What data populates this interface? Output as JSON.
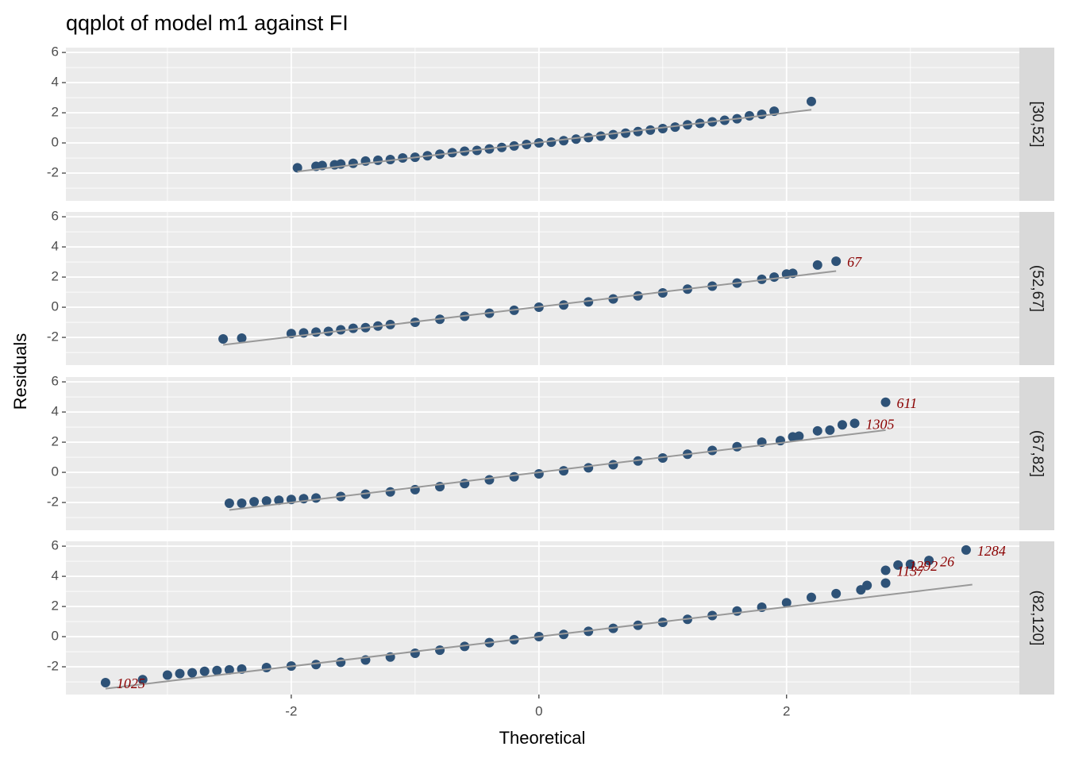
{
  "chart_data": {
    "type": "scatter",
    "title": "qqplot of model m1 against FI",
    "xlabel": "Theoretical",
    "ylabel": "Residuals",
    "xlim": [
      -3.82,
      3.88
    ],
    "ylim": [
      -3.84,
      6.32
    ],
    "xticks": [
      -2,
      0,
      2
    ],
    "yticks": [
      -2,
      0,
      2,
      4,
      6
    ],
    "grid": true,
    "point_color": "#2e5277",
    "line_color": "#999999",
    "label_color": "#8b0000",
    "panels": [
      {
        "strip": "[30,52]",
        "x": [
          -1.95,
          -1.8,
          -1.75,
          -1.65,
          -1.6,
          -1.5,
          -1.4,
          -1.3,
          -1.2,
          -1.1,
          -1.0,
          -0.9,
          -0.8,
          -0.7,
          -0.6,
          -0.5,
          -0.4,
          -0.3,
          -0.2,
          -0.1,
          0,
          0.1,
          0.2,
          0.3,
          0.4,
          0.5,
          0.6,
          0.7,
          0.8,
          0.9,
          1.0,
          1.1,
          1.2,
          1.3,
          1.4,
          1.5,
          1.6,
          1.7,
          1.8,
          1.9,
          2.2
        ],
        "y": [
          -1.65,
          -1.55,
          -1.5,
          -1.45,
          -1.4,
          -1.35,
          -1.2,
          -1.15,
          -1.1,
          -1.0,
          -0.95,
          -0.85,
          -0.75,
          -0.65,
          -0.55,
          -0.5,
          -0.4,
          -0.3,
          -0.2,
          -0.1,
          0,
          0.05,
          0.15,
          0.25,
          0.35,
          0.45,
          0.55,
          0.65,
          0.75,
          0.85,
          0.95,
          1.05,
          1.2,
          1.3,
          1.4,
          1.5,
          1.6,
          1.8,
          1.9,
          2.1,
          2.75
        ],
        "ref_line": {
          "x": [
            -1.95,
            2.2
          ],
          "y": [
            -1.9,
            2.2
          ]
        },
        "point_labels": []
      },
      {
        "strip": "(52,67]",
        "x": [
          -2.55,
          -2.4,
          -2.0,
          -1.9,
          -1.8,
          -1.7,
          -1.6,
          -1.5,
          -1.4,
          -1.3,
          -1.2,
          -1.0,
          -0.8,
          -0.6,
          -0.4,
          -0.2,
          0,
          0.2,
          0.4,
          0.6,
          0.8,
          1.0,
          1.2,
          1.4,
          1.6,
          1.8,
          1.9,
          2.0,
          2.05,
          2.25,
          2.4
        ],
        "y": [
          -2.1,
          -2.05,
          -1.75,
          -1.7,
          -1.65,
          -1.6,
          -1.5,
          -1.4,
          -1.35,
          -1.25,
          -1.15,
          -1.0,
          -0.8,
          -0.6,
          -0.4,
          -0.2,
          0,
          0.15,
          0.35,
          0.55,
          0.75,
          0.95,
          1.2,
          1.4,
          1.6,
          1.85,
          2.0,
          2.2,
          2.25,
          2.8,
          3.05
        ],
        "ref_line": {
          "x": [
            -2.55,
            2.4
          ],
          "y": [
            -2.5,
            2.4
          ]
        },
        "point_labels": [
          {
            "label": "67",
            "x": 2.4,
            "y": 3.05
          }
        ]
      },
      {
        "strip": "(67,82]",
        "x": [
          -2.5,
          -2.4,
          -2.3,
          -2.2,
          -2.1,
          -2.0,
          -1.9,
          -1.8,
          -1.6,
          -1.4,
          -1.2,
          -1.0,
          -0.8,
          -0.6,
          -0.4,
          -0.2,
          0,
          0.2,
          0.4,
          0.6,
          0.8,
          1.0,
          1.2,
          1.4,
          1.6,
          1.8,
          1.95,
          2.05,
          2.1,
          2.25,
          2.35,
          2.45,
          2.55,
          2.8
        ],
        "y": [
          -2.05,
          -2.05,
          -1.95,
          -1.9,
          -1.85,
          -1.8,
          -1.75,
          -1.7,
          -1.6,
          -1.45,
          -1.3,
          -1.15,
          -0.95,
          -0.75,
          -0.5,
          -0.3,
          -0.1,
          0.1,
          0.3,
          0.5,
          0.75,
          0.95,
          1.2,
          1.45,
          1.7,
          2.0,
          2.1,
          2.35,
          2.4,
          2.75,
          2.8,
          3.15,
          3.25,
          4.65
        ],
        "ref_line": {
          "x": [
            -2.5,
            2.8
          ],
          "y": [
            -2.5,
            2.8
          ]
        },
        "point_labels": [
          {
            "label": "611",
            "x": 2.8,
            "y": 4.65
          },
          {
            "label": "1305",
            "x": 2.55,
            "y": 3.25
          }
        ]
      },
      {
        "strip": "(82,120]",
        "x": [
          -3.5,
          -3.2,
          -3.0,
          -2.9,
          -2.8,
          -2.7,
          -2.6,
          -2.5,
          -2.4,
          -2.2,
          -2.0,
          -1.8,
          -1.6,
          -1.4,
          -1.2,
          -1.0,
          -0.8,
          -0.6,
          -0.4,
          -0.2,
          0,
          0.2,
          0.4,
          0.6,
          0.8,
          1.0,
          1.2,
          1.4,
          1.6,
          1.8,
          2.0,
          2.2,
          2.4,
          2.6,
          2.65,
          2.8,
          2.8,
          2.9,
          3.0,
          3.15,
          3.45
        ],
        "y": [
          -3.05,
          -2.85,
          -2.55,
          -2.45,
          -2.4,
          -2.3,
          -2.25,
          -2.2,
          -2.15,
          -2.05,
          -1.95,
          -1.85,
          -1.7,
          -1.55,
          -1.35,
          -1.1,
          -0.9,
          -0.65,
          -0.4,
          -0.2,
          0,
          0.15,
          0.35,
          0.55,
          0.75,
          0.95,
          1.15,
          1.4,
          1.7,
          1.95,
          2.25,
          2.6,
          2.85,
          3.1,
          3.4,
          3.55,
          4.4,
          4.75,
          4.8,
          5.05,
          5.75
        ],
        "ref_line": {
          "x": [
            -3.5,
            3.5
          ],
          "y": [
            -3.45,
            3.45
          ]
        },
        "point_labels": [
          {
            "label": "1284",
            "x": 3.45,
            "y": 5.75
          },
          {
            "label": "26",
            "x": 3.15,
            "y": 5.05
          },
          {
            "label": "1292",
            "x": 2.9,
            "y": 4.75
          },
          {
            "label": "1137",
            "x": 2.8,
            "y": 4.4
          },
          {
            "label": "1025",
            "x": -3.5,
            "y": -3.05
          }
        ]
      }
    ]
  }
}
